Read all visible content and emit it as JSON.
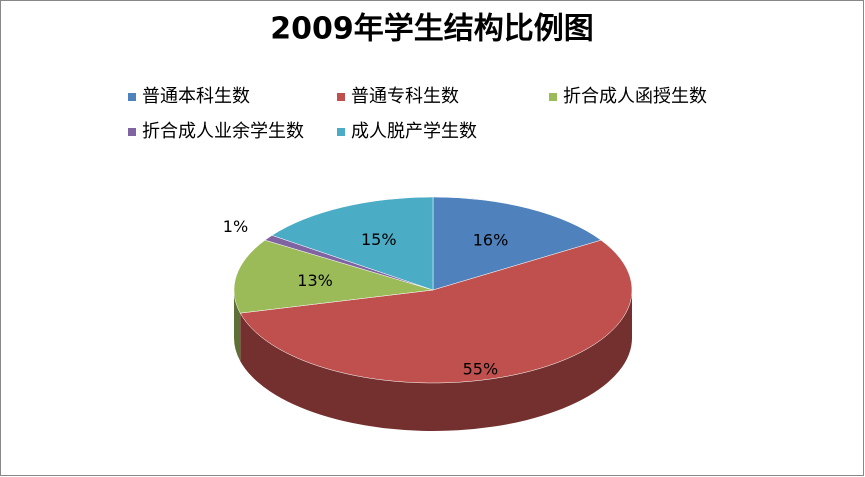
{
  "chart_data": {
    "type": "pie",
    "title": "2009年学生结构比例图",
    "categories": [
      "普通本科生数",
      "普通专科生数",
      "折合成人函授生数",
      "折合成人业余学生数",
      "成人脱产学生数"
    ],
    "values": [
      16,
      55,
      13,
      1,
      15
    ],
    "value_labels": [
      "16%",
      "55%",
      "13%",
      "1%",
      "15%"
    ],
    "colors": [
      "#4f81bd",
      "#c0504d",
      "#9bbb59",
      "#8064a2",
      "#4bacc6"
    ]
  }
}
